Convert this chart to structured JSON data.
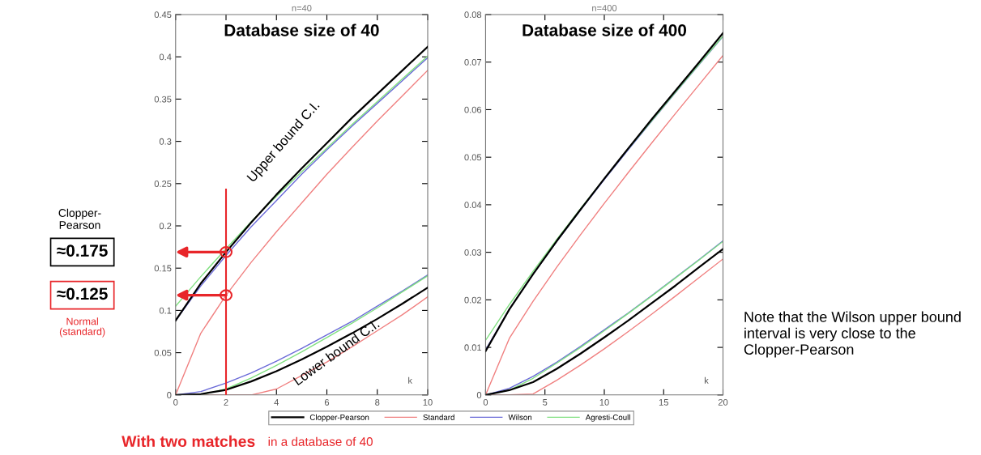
{
  "chart_data": [
    {
      "type": "line",
      "title": "n=40",
      "subtitle": "Database size of 40",
      "xlabel": "k",
      "x": [
        0,
        1,
        2,
        3,
        4,
        5,
        6,
        7,
        8,
        9,
        10
      ],
      "xlim": [
        0,
        10
      ],
      "xticks": [
        0,
        2,
        4,
        6,
        8,
        10
      ],
      "ylim": [
        0,
        0.45
      ],
      "yticks": [
        0,
        0.05,
        0.1,
        0.15,
        0.2,
        0.25,
        0.3,
        0.35,
        0.4,
        0.45
      ],
      "grid": false,
      "legend": "bottom",
      "marker": "none",
      "line_style": "solid",
      "series": [
        {
          "name": "Clopper-Pearson",
          "color": "#000000",
          "values": [
            0.088,
            0.132,
            0.169,
            0.204,
            0.237,
            0.268,
            0.298,
            0.328,
            0.356,
            0.384,
            0.412
          ]
        },
        {
          "name": "Standard",
          "color": "#f08080",
          "values": [
            0,
            0.073,
            0.118,
            0.157,
            0.193,
            0.227,
            0.261,
            0.293,
            0.324,
            0.354,
            0.384
          ]
        },
        {
          "name": "Wilson",
          "color": "#6a6ad8",
          "values": [
            0.088,
            0.129,
            0.165,
            0.199,
            0.23,
            0.261,
            0.29,
            0.318,
            0.345,
            0.372,
            0.399
          ]
        },
        {
          "name": "Agresti-Coull",
          "color": "#80e080",
          "values": [
            0.105,
            0.14,
            0.173,
            0.205,
            0.235,
            0.264,
            0.292,
            0.32,
            0.347,
            0.374,
            0.401
          ]
        },
        {
          "color": "#000000",
          "values": [
            0,
            0.001,
            0.006,
            0.016,
            0.028,
            0.042,
            0.057,
            0.073,
            0.09,
            0.108,
            0.127
          ]
        },
        {
          "color": "#f08080",
          "values": [
            0,
            0,
            0,
            0,
            0.007,
            0.023,
            0.039,
            0.057,
            0.076,
            0.095,
            0.116
          ]
        },
        {
          "color": "#6a6ad8",
          "values": [
            0,
            0.004,
            0.014,
            0.026,
            0.04,
            0.055,
            0.071,
            0.087,
            0.105,
            0.123,
            0.142
          ]
        },
        {
          "color": "#80e080",
          "values": [
            0,
            0,
            0.007,
            0.02,
            0.035,
            0.051,
            0.068,
            0.085,
            0.103,
            0.122,
            0.141
          ]
        }
      ],
      "ref_lines": [
        {
          "axis": "x",
          "value": 2,
          "color": "#e8262a"
        }
      ],
      "annotations": [
        "Upper bound C.I.",
        "Lower bound C.I.",
        "Clopper-Pearson",
        "≈0.175",
        "Normal (standard)",
        "≈0.125",
        "With two matches",
        "in a database of 40"
      ]
    },
    {
      "type": "line",
      "title": "n=400",
      "subtitle": "Database size of 400",
      "xlabel": "k",
      "x": [
        0,
        2,
        4,
        6,
        8,
        10,
        12,
        14,
        16,
        18,
        20
      ],
      "xlim": [
        0,
        20
      ],
      "xticks": [
        0,
        5,
        10,
        15,
        20
      ],
      "ylim": [
        0,
        0.08
      ],
      "yticks": [
        0,
        0.01,
        0.02,
        0.03,
        0.04,
        0.05,
        0.06,
        0.07,
        0.08
      ],
      "grid": false,
      "marker": "none",
      "line_style": "solid",
      "series": [
        {
          "color": "#000000",
          "values": [
            0.0092,
            0.018,
            0.0254,
            0.0324,
            0.039,
            0.0455,
            0.0518,
            0.058,
            0.064,
            0.07,
            0.0761
          ]
        },
        {
          "color": "#f08080",
          "values": [
            0,
            0.0119,
            0.0197,
            0.0269,
            0.0337,
            0.0403,
            0.0467,
            0.053,
            0.0592,
            0.0653,
            0.0714
          ]
        },
        {
          "color": "#6a6ad8",
          "values": [
            0.0095,
            0.018,
            0.0254,
            0.0323,
            0.0389,
            0.0453,
            0.0515,
            0.0576,
            0.0636,
            0.0695,
            0.0754
          ]
        },
        {
          "color": "#80e080",
          "values": [
            0.0115,
            0.019,
            0.026,
            0.0327,
            0.0392,
            0.0455,
            0.0517,
            0.0577,
            0.0637,
            0.0696,
            0.0755
          ]
        },
        {
          "color": "#000000",
          "values": [
            0,
            0.001,
            0.0027,
            0.0055,
            0.0087,
            0.0121,
            0.0156,
            0.0193,
            0.023,
            0.0269,
            0.0307
          ]
        },
        {
          "color": "#f08080",
          "values": [
            0,
            0,
            0.0002,
            0.0031,
            0.0063,
            0.0097,
            0.0133,
            0.017,
            0.0208,
            0.0247,
            0.0286
          ]
        },
        {
          "color": "#6a6ad8",
          "values": [
            0,
            0.0014,
            0.0039,
            0.0069,
            0.0102,
            0.0137,
            0.0172,
            0.0209,
            0.0247,
            0.0285,
            0.0324
          ]
        },
        {
          "color": "#80e080",
          "values": [
            0,
            0.001,
            0.0035,
            0.0067,
            0.01,
            0.0135,
            0.0171,
            0.0208,
            0.0246,
            0.0284,
            0.0323
          ]
        }
      ],
      "annotations": [
        "Note that the Wilson upper bound interval is very close to the Clopper-Pearson"
      ]
    }
  ]
}
